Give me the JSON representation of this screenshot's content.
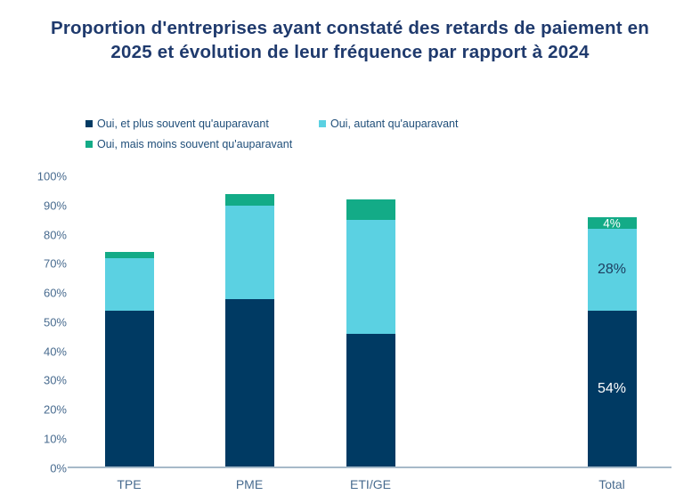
{
  "title": "Proportion d'entreprises ayant constaté des retards de paiement en 2025 et évolution de leur fréquence par rapport à 2024",
  "colors": {
    "title": "#1f3a6d",
    "legend_text": "#1f4e79",
    "tick_text": "#486b8f",
    "category_text": "#486b8f",
    "axis_line": "#a7b9c9",
    "background": "#ffffff"
  },
  "chart_data": {
    "type": "bar",
    "stacked": true,
    "title": "Proportion d'entreprises ayant constaté des retards de paiement en 2025 et évolution de leur fréquence par rapport à 2024",
    "categories": [
      "TPE",
      "PME",
      "ETI/GE",
      "Total"
    ],
    "series": [
      {
        "name": "Oui, et plus souvent qu'auparavant",
        "color": "#003a63",
        "values": [
          54,
          58,
          46,
          54
        ]
      },
      {
        "name": "Oui, autant qu'auparavant",
        "color": "#5bd1e2",
        "values": [
          18,
          32,
          39,
          28
        ]
      },
      {
        "name": "Oui, mais moins souvent qu'auparavant",
        "color": "#13ab87",
        "values": [
          2,
          4,
          7,
          4
        ]
      }
    ],
    "y_ticks": [
      "0%",
      "10%",
      "20%",
      "30%",
      "40%",
      "50%",
      "60%",
      "70%",
      "80%",
      "90%",
      "100%"
    ],
    "ylim": [
      0,
      100
    ],
    "grid": false,
    "legend_position": "top",
    "data_labels": {
      "category": "Total",
      "values": [
        "54%",
        "28%",
        "4%"
      ],
      "colors": [
        "#ffffff",
        "#1d3c5e",
        "#ffffff"
      ]
    }
  }
}
